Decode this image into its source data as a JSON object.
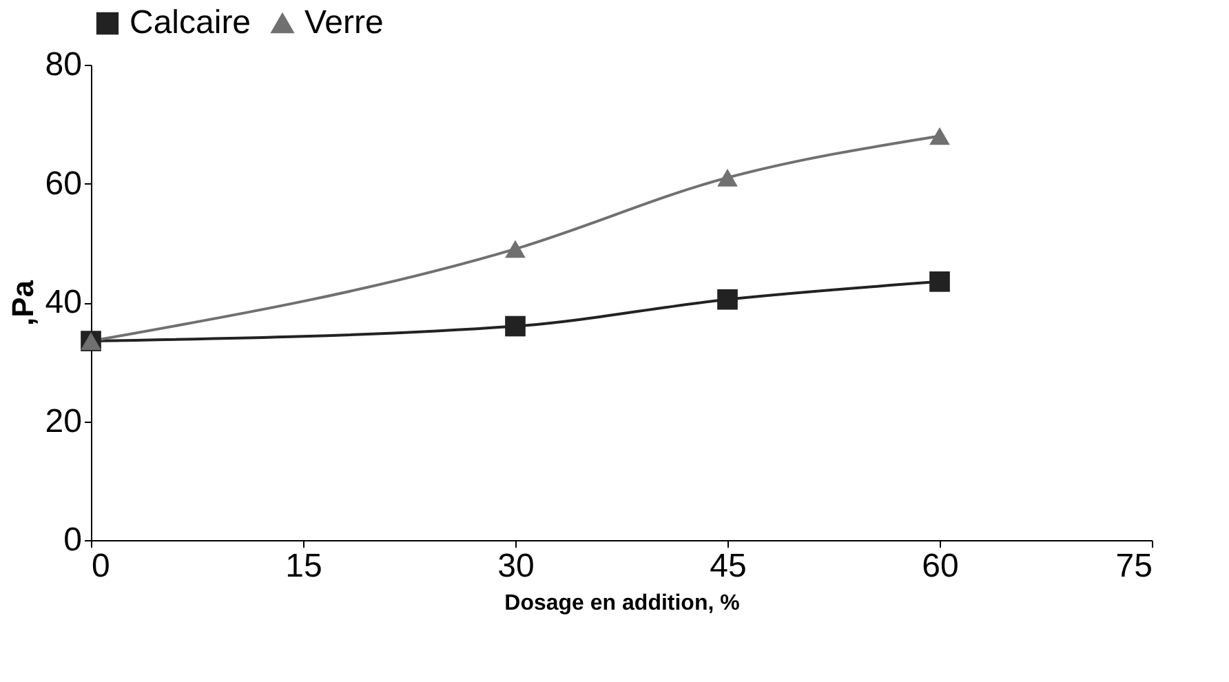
{
  "chart_data": {
    "type": "line",
    "xlabel": "Dosage en addition, %",
    "ylabel": ",Pa",
    "x": [
      0,
      30,
      45,
      60
    ],
    "series": [
      {
        "name": "Calcaire",
        "color": "#222222",
        "marker": "square",
        "values": [
          33.5,
          36,
          40.5,
          43.5
        ]
      },
      {
        "name": "Verre",
        "color": "#707070",
        "marker": "triangle",
        "values": [
          33.5,
          49,
          61,
          68
        ]
      }
    ],
    "xlim": [
      0,
      75
    ],
    "xticks": [
      0,
      15,
      30,
      45,
      60,
      75
    ],
    "ylim": [
      0,
      80
    ],
    "yticks": [
      0,
      20,
      40,
      60,
      80
    ],
    "grid": false,
    "legend": "top",
    "line_style": "solid"
  }
}
